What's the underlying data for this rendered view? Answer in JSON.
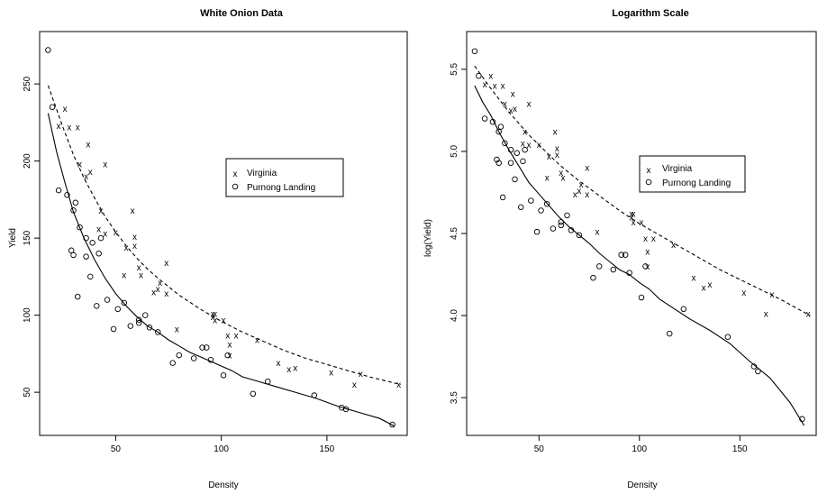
{
  "chart_data": [
    {
      "type": "scatter",
      "title": "White Onion Data",
      "xlabel": "Density",
      "ylabel": "Yield",
      "xlim": [
        14,
        188
      ],
      "ylim": [
        22,
        284
      ],
      "xticks": [
        "50",
        "100",
        "150"
      ],
      "xtick_values": [
        50,
        100,
        150
      ],
      "yticks": [
        "50",
        "100",
        "150",
        "200",
        "250"
      ],
      "ytick_values": [
        50,
        100,
        150,
        200,
        250
      ],
      "grid": false,
      "legend_position": "center-right",
      "series": [
        {
          "name": "Virginia",
          "marker": "x",
          "points": [
            [
              23,
              223
            ],
            [
              26,
              234
            ],
            [
              28,
              222
            ],
            [
              32,
              222
            ],
            [
              33,
              198
            ],
            [
              36,
              190
            ],
            [
              37,
              211
            ],
            [
              38,
              193
            ],
            [
              42,
              156
            ],
            [
              43,
              168
            ],
            [
              45,
              198
            ],
            [
              45,
              153
            ],
            [
              50,
              154
            ],
            [
              54,
              126
            ],
            [
              55,
              144
            ],
            [
              58,
              168
            ],
            [
              59,
              145
            ],
            [
              59,
              151
            ],
            [
              61,
              131
            ],
            [
              62,
              126
            ],
            [
              68,
              115
            ],
            [
              70,
              117
            ],
            [
              71,
              121
            ],
            [
              74,
              114
            ],
            [
              74,
              134
            ],
            [
              79,
              91
            ],
            [
              96,
              99
            ],
            [
              96,
              101
            ],
            [
              97,
              101
            ],
            [
              97,
              97
            ],
            [
              101,
              97
            ],
            [
              103,
              87
            ],
            [
              104,
              81
            ],
            [
              104,
              74
            ],
            [
              107,
              87
            ],
            [
              117,
              84
            ],
            [
              127,
              69
            ],
            [
              132,
              65
            ],
            [
              135,
              66
            ],
            [
              152,
              63
            ],
            [
              163,
              55
            ],
            [
              166,
              62
            ],
            [
              184,
              55
            ]
          ]
        },
        {
          "name": "Purnong Landing",
          "marker": "circle",
          "points": [
            [
              18,
              272
            ],
            [
              20,
              235
            ],
            [
              23,
              181
            ],
            [
              27,
              178
            ],
            [
              29,
              142
            ],
            [
              30,
              139
            ],
            [
              30,
              168
            ],
            [
              31,
              173
            ],
            [
              32,
              112
            ],
            [
              33,
              157
            ],
            [
              36,
              138
            ],
            [
              36,
              150
            ],
            [
              38,
              125
            ],
            [
              39,
              147
            ],
            [
              41,
              106
            ],
            [
              42,
              140
            ],
            [
              43,
              150
            ],
            [
              46,
              110
            ],
            [
              49,
              91
            ],
            [
              51,
              104
            ],
            [
              54,
              108
            ],
            [
              57,
              93
            ],
            [
              61,
              95
            ],
            [
              61,
              97
            ],
            [
              64,
              100
            ],
            [
              66,
              92
            ],
            [
              70,
              89
            ],
            [
              77,
              69
            ],
            [
              80,
              74
            ],
            [
              87,
              72
            ],
            [
              91,
              79
            ],
            [
              93,
              79
            ],
            [
              95,
              71
            ],
            [
              101,
              61
            ],
            [
              103,
              74
            ],
            [
              115,
              49
            ],
            [
              122,
              57
            ],
            [
              144,
              48
            ],
            [
              157,
              40
            ],
            [
              159,
              39
            ],
            [
              181,
              29
            ]
          ]
        },
        {
          "name": "",
          "line": "dashed",
          "points": [
            [
              18,
              249
            ],
            [
              25,
              222
            ],
            [
              30,
              204
            ],
            [
              35,
              189
            ],
            [
              40,
              176
            ],
            [
              45,
              164
            ],
            [
              50,
              154
            ],
            [
              55,
              145
            ],
            [
              60,
              137
            ],
            [
              65,
              130
            ],
            [
              70,
              124
            ],
            [
              80,
              113
            ],
            [
              90,
              104
            ],
            [
              100,
              96
            ],
            [
              110,
              89
            ],
            [
              120,
              83
            ],
            [
              130,
              77
            ],
            [
              140,
              72
            ],
            [
              150,
              68
            ],
            [
              160,
              64
            ],
            [
              170,
              60
            ],
            [
              185,
              55
            ]
          ]
        },
        {
          "name": "",
          "line": "solid",
          "points": [
            [
              18,
              231
            ],
            [
              22,
              206
            ],
            [
              26,
              186
            ],
            [
              30,
              167
            ],
            [
              35,
              150
            ],
            [
              40,
              136
            ],
            [
              45,
              124
            ],
            [
              50,
              114
            ],
            [
              55,
              106
            ],
            [
              60,
              99
            ],
            [
              65,
              93
            ],
            [
              70,
              89
            ],
            [
              75,
              84
            ],
            [
              80,
              80
            ],
            [
              85,
              76
            ],
            [
              90,
              73
            ],
            [
              95,
              70
            ],
            [
              100,
              67
            ],
            [
              105,
              64
            ],
            [
              110,
              60
            ],
            [
              115,
              58
            ],
            [
              125,
              54
            ],
            [
              135,
              50
            ],
            [
              145,
              46
            ],
            [
              155,
              41
            ],
            [
              165,
              37
            ],
            [
              175,
              33
            ],
            [
              182,
              28
            ]
          ]
        }
      ]
    },
    {
      "type": "scatter",
      "title": "Logarithm Scale",
      "xlabel": "Density",
      "ylabel": "log(Yield)",
      "xlim": [
        14,
        188
      ],
      "ylim": [
        3.27,
        5.73
      ],
      "xticks": [
        "50",
        "100",
        "150"
      ],
      "xtick_values": [
        50,
        100,
        150
      ],
      "yticks": [
        "3.5",
        "4.0",
        "4.5",
        "5.0",
        "5.5"
      ],
      "ytick_values": [
        3.5,
        4.0,
        4.5,
        5.0,
        5.5
      ],
      "grid": false,
      "legend_position": "center-right",
      "series": [
        {
          "name": "Virginia",
          "marker": "x",
          "points": [
            [
              23,
              5.41
            ],
            [
              26,
              5.46
            ],
            [
              28,
              5.4
            ],
            [
              32,
              5.4
            ],
            [
              33,
              5.29
            ],
            [
              36,
              5.25
            ],
            [
              37,
              5.35
            ],
            [
              38,
              5.26
            ],
            [
              42,
              5.05
            ],
            [
              43,
              5.12
            ],
            [
              45,
              5.29
            ],
            [
              45,
              5.04
            ],
            [
              50,
              5.04
            ],
            [
              54,
              4.84
            ],
            [
              55,
              4.97
            ],
            [
              58,
              5.12
            ],
            [
              59,
              4.98
            ],
            [
              59,
              5.02
            ],
            [
              61,
              4.87
            ],
            [
              62,
              4.84
            ],
            [
              68,
              4.74
            ],
            [
              70,
              4.76
            ],
            [
              71,
              4.8
            ],
            [
              74,
              4.74
            ],
            [
              74,
              4.9
            ],
            [
              79,
              4.51
            ],
            [
              96,
              4.6
            ],
            [
              96,
              4.62
            ],
            [
              97,
              4.62
            ],
            [
              97,
              4.57
            ],
            [
              101,
              4.57
            ],
            [
              103,
              4.47
            ],
            [
              104,
              4.39
            ],
            [
              104,
              4.3
            ],
            [
              107,
              4.47
            ],
            [
              117,
              4.43
            ],
            [
              127,
              4.23
            ],
            [
              132,
              4.17
            ],
            [
              135,
              4.19
            ],
            [
              152,
              4.14
            ],
            [
              163,
              4.01
            ],
            [
              166,
              4.13
            ],
            [
              184,
              4.01
            ]
          ]
        },
        {
          "name": "Purnong Landing",
          "marker": "circle",
          "points": [
            [
              18,
              5.61
            ],
            [
              20,
              5.46
            ],
            [
              23,
              5.2
            ],
            [
              27,
              5.18
            ],
            [
              29,
              4.95
            ],
            [
              30,
              4.93
            ],
            [
              30,
              5.12
            ],
            [
              31,
              5.15
            ],
            [
              32,
              4.72
            ],
            [
              33,
              5.05
            ],
            [
              36,
              4.93
            ],
            [
              36,
              5.01
            ],
            [
              38,
              4.83
            ],
            [
              39,
              4.99
            ],
            [
              41,
              4.66
            ],
            [
              42,
              4.94
            ],
            [
              43,
              5.01
            ],
            [
              46,
              4.7
            ],
            [
              49,
              4.51
            ],
            [
              51,
              4.64
            ],
            [
              54,
              4.68
            ],
            [
              57,
              4.53
            ],
            [
              61,
              4.55
            ],
            [
              61,
              4.57
            ],
            [
              64,
              4.61
            ],
            [
              66,
              4.52
            ],
            [
              70,
              4.49
            ],
            [
              77,
              4.23
            ],
            [
              80,
              4.3
            ],
            [
              87,
              4.28
            ],
            [
              91,
              4.37
            ],
            [
              93,
              4.37
            ],
            [
              95,
              4.26
            ],
            [
              101,
              4.11
            ],
            [
              103,
              4.3
            ],
            [
              115,
              3.89
            ],
            [
              122,
              4.04
            ],
            [
              144,
              3.87
            ],
            [
              157,
              3.69
            ],
            [
              159,
              3.66
            ],
            [
              181,
              3.37
            ]
          ]
        },
        {
          "name": "",
          "line": "dashed",
          "points": [
            [
              18,
              5.52
            ],
            [
              25,
              5.4
            ],
            [
              30,
              5.32
            ],
            [
              35,
              5.24
            ],
            [
              40,
              5.17
            ],
            [
              45,
              5.1
            ],
            [
              50,
              5.04
            ],
            [
              55,
              4.98
            ],
            [
              60,
              4.92
            ],
            [
              65,
              4.87
            ],
            [
              70,
              4.82
            ],
            [
              80,
              4.73
            ],
            [
              90,
              4.64
            ],
            [
              100,
              4.56
            ],
            [
              110,
              4.49
            ],
            [
              120,
              4.42
            ],
            [
              130,
              4.35
            ],
            [
              140,
              4.28
            ],
            [
              150,
              4.22
            ],
            [
              160,
              4.16
            ],
            [
              170,
              4.1
            ],
            [
              185,
              4.0
            ]
          ]
        },
        {
          "name": "",
          "line": "solid",
          "points": [
            [
              18,
              5.4
            ],
            [
              22,
              5.3
            ],
            [
              26,
              5.22
            ],
            [
              30,
              5.12
            ],
            [
              35,
              5.01
            ],
            [
              40,
              4.91
            ],
            [
              45,
              4.81
            ],
            [
              50,
              4.74
            ],
            [
              55,
              4.67
            ],
            [
              60,
              4.6
            ],
            [
              65,
              4.54
            ],
            [
              70,
              4.49
            ],
            [
              75,
              4.44
            ],
            [
              80,
              4.38
            ],
            [
              85,
              4.33
            ],
            [
              90,
              4.28
            ],
            [
              95,
              4.25
            ],
            [
              100,
              4.2
            ],
            [
              105,
              4.16
            ],
            [
              110,
              4.1
            ],
            [
              115,
              4.06
            ],
            [
              125,
              3.98
            ],
            [
              135,
              3.91
            ],
            [
              145,
              3.83
            ],
            [
              155,
              3.72
            ],
            [
              165,
              3.62
            ],
            [
              175,
              3.47
            ],
            [
              182,
              3.33
            ]
          ]
        }
      ]
    }
  ]
}
